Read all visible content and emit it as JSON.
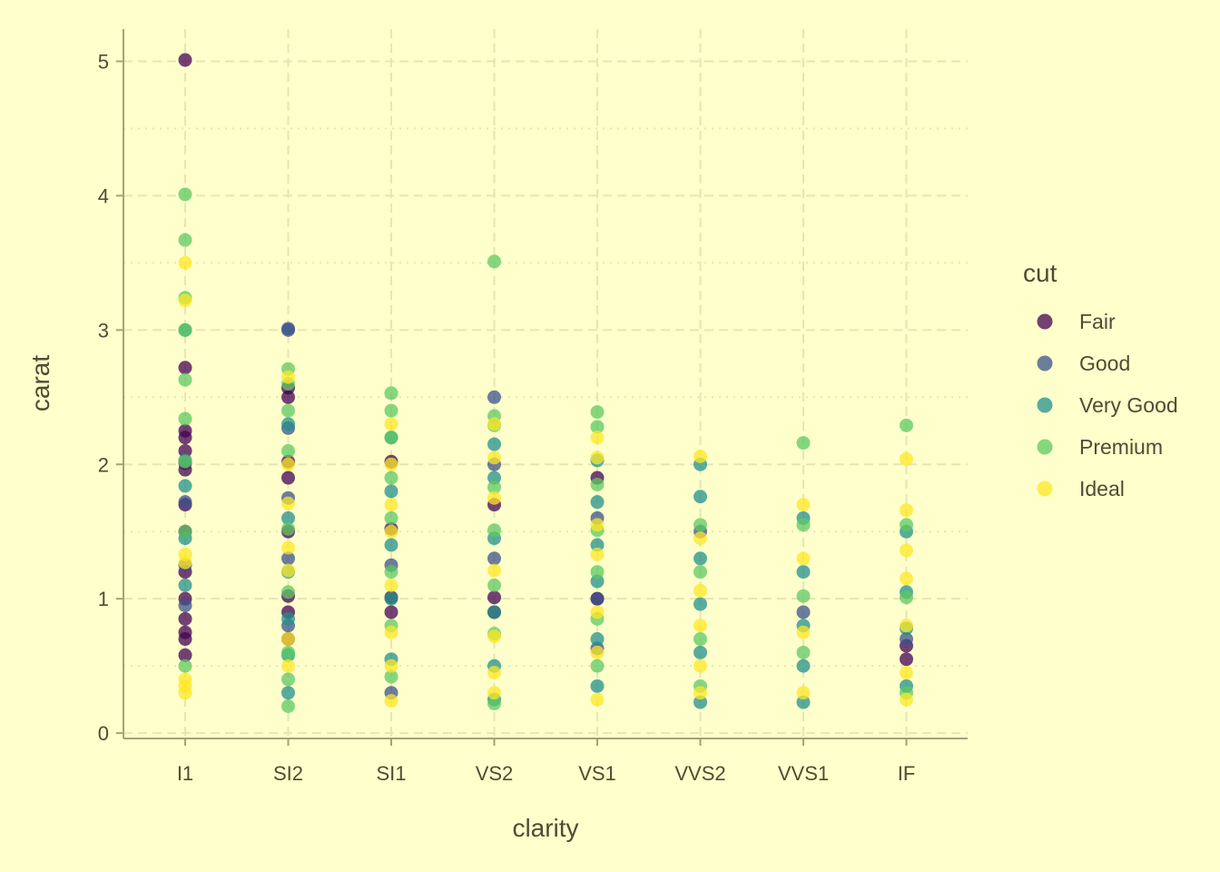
{
  "chart_data": {
    "type": "scatter",
    "xlabel": "clarity",
    "ylabel": "carat",
    "categories": [
      "I1",
      "SI2",
      "SI1",
      "VS2",
      "VS1",
      "VVS2",
      "VVS1",
      "IF"
    ],
    "ylim": [
      -0.04,
      5.24
    ],
    "yticks": [
      0,
      1,
      2,
      3,
      4,
      5
    ],
    "grid": true,
    "legend_position": "right",
    "legend_title": "cut",
    "point_opacity": 0.75,
    "series": [
      {
        "name": "Fair",
        "color": "#440154",
        "points": [
          [
            "I1",
            5.01
          ],
          [
            "I1",
            2.72
          ],
          [
            "I1",
            2.25
          ],
          [
            "I1",
            2.2
          ],
          [
            "I1",
            2.1
          ],
          [
            "I1",
            2.01
          ],
          [
            "I1",
            1.96
          ],
          [
            "I1",
            1.7
          ],
          [
            "I1",
            1.5
          ],
          [
            "I1",
            1.2
          ],
          [
            "I1",
            1.0
          ],
          [
            "I1",
            0.85
          ],
          [
            "I1",
            0.75
          ],
          [
            "I1",
            0.7
          ],
          [
            "I1",
            0.58
          ],
          [
            "SI2",
            2.57
          ],
          [
            "SI2",
            2.5
          ],
          [
            "SI2",
            2.02
          ],
          [
            "SI2",
            1.9
          ],
          [
            "SI2",
            1.5
          ],
          [
            "SI2",
            1.02
          ],
          [
            "SI2",
            0.9
          ],
          [
            "SI2",
            0.7
          ],
          [
            "SI1",
            2.02
          ],
          [
            "SI1",
            1.52
          ],
          [
            "SI1",
            1.01
          ],
          [
            "SI1",
            0.9
          ],
          [
            "VS2",
            1.7
          ],
          [
            "VS2",
            1.01
          ],
          [
            "VS2",
            0.9
          ],
          [
            "VS1",
            1.9
          ],
          [
            "VS1",
            1.0
          ],
          [
            "IF",
            0.65
          ],
          [
            "IF",
            0.55
          ]
        ]
      },
      {
        "name": "Good",
        "color": "#3B528B",
        "points": [
          [
            "I1",
            1.72
          ],
          [
            "I1",
            1.25
          ],
          [
            "I1",
            0.95
          ],
          [
            "SI2",
            3.01
          ],
          [
            "SI2",
            3.0
          ],
          [
            "SI2",
            2.27
          ],
          [
            "SI2",
            1.75
          ],
          [
            "SI2",
            1.3
          ],
          [
            "SI2",
            0.8
          ],
          [
            "SI1",
            1.25
          ],
          [
            "SI1",
            0.3
          ],
          [
            "VS2",
            2.5
          ],
          [
            "VS2",
            2.0
          ],
          [
            "VS2",
            1.3
          ],
          [
            "VS1",
            1.6
          ],
          [
            "VS1",
            1.0
          ],
          [
            "VS1",
            0.63
          ],
          [
            "VVS2",
            1.5
          ],
          [
            "VVS1",
            0.9
          ],
          [
            "IF",
            0.7
          ]
        ]
      },
      {
        "name": "Very Good",
        "color": "#21908C",
        "points": [
          [
            "I1",
            3.0
          ],
          [
            "I1",
            2.03
          ],
          [
            "I1",
            1.84
          ],
          [
            "I1",
            1.45
          ],
          [
            "I1",
            1.1
          ],
          [
            "SI2",
            2.3
          ],
          [
            "SI2",
            1.6
          ],
          [
            "SI2",
            1.2
          ],
          [
            "SI2",
            0.85
          ],
          [
            "SI2",
            0.58
          ],
          [
            "SI2",
            0.3
          ],
          [
            "SI1",
            2.2
          ],
          [
            "SI1",
            1.8
          ],
          [
            "SI1",
            1.4
          ],
          [
            "SI1",
            1.0
          ],
          [
            "SI1",
            0.55
          ],
          [
            "VS2",
            2.15
          ],
          [
            "VS2",
            1.9
          ],
          [
            "VS2",
            1.45
          ],
          [
            "VS2",
            0.9
          ],
          [
            "VS2",
            0.5
          ],
          [
            "VS2",
            0.25
          ],
          [
            "VS1",
            2.03
          ],
          [
            "VS1",
            1.72
          ],
          [
            "VS1",
            1.4
          ],
          [
            "VS1",
            1.13
          ],
          [
            "VS1",
            0.7
          ],
          [
            "VS1",
            0.35
          ],
          [
            "VVS2",
            2.0
          ],
          [
            "VVS2",
            1.76
          ],
          [
            "VVS2",
            1.3
          ],
          [
            "VVS2",
            0.96
          ],
          [
            "VVS2",
            0.6
          ],
          [
            "VVS2",
            0.23
          ],
          [
            "VVS1",
            1.6
          ],
          [
            "VVS1",
            1.2
          ],
          [
            "VVS1",
            0.8
          ],
          [
            "VVS1",
            0.5
          ],
          [
            "VVS1",
            0.23
          ],
          [
            "IF",
            1.5
          ],
          [
            "IF",
            1.05
          ],
          [
            "IF",
            0.78
          ],
          [
            "IF",
            0.35
          ]
        ]
      },
      {
        "name": "Premium",
        "color": "#5DC863",
        "points": [
          [
            "I1",
            4.01
          ],
          [
            "I1",
            3.67
          ],
          [
            "I1",
            3.24
          ],
          [
            "I1",
            3.0
          ],
          [
            "I1",
            2.63
          ],
          [
            "I1",
            2.34
          ],
          [
            "I1",
            2.02
          ],
          [
            "I1",
            1.5
          ],
          [
            "I1",
            0.5
          ],
          [
            "SI2",
            2.71
          ],
          [
            "SI2",
            2.6
          ],
          [
            "SI2",
            2.4
          ],
          [
            "SI2",
            2.1
          ],
          [
            "SI2",
            1.52
          ],
          [
            "SI2",
            1.05
          ],
          [
            "SI2",
            0.6
          ],
          [
            "SI2",
            0.4
          ],
          [
            "SI2",
            0.2
          ],
          [
            "SI1",
            2.53
          ],
          [
            "SI1",
            2.4
          ],
          [
            "SI1",
            2.2
          ],
          [
            "SI1",
            1.9
          ],
          [
            "SI1",
            1.6
          ],
          [
            "SI1",
            1.2
          ],
          [
            "SI1",
            0.8
          ],
          [
            "SI1",
            0.42
          ],
          [
            "VS2",
            3.51
          ],
          [
            "VS2",
            2.36
          ],
          [
            "VS2",
            2.29
          ],
          [
            "VS2",
            1.83
          ],
          [
            "VS2",
            1.51
          ],
          [
            "VS2",
            1.1
          ],
          [
            "VS2",
            0.74
          ],
          [
            "VS2",
            0.22
          ],
          [
            "VS1",
            2.39
          ],
          [
            "VS1",
            2.28
          ],
          [
            "VS1",
            1.85
          ],
          [
            "VS1",
            1.51
          ],
          [
            "VS1",
            1.2
          ],
          [
            "VS1",
            0.85
          ],
          [
            "VS1",
            0.5
          ],
          [
            "VVS2",
            1.55
          ],
          [
            "VVS2",
            1.2
          ],
          [
            "VVS2",
            0.7
          ],
          [
            "VVS2",
            0.35
          ],
          [
            "VVS1",
            2.16
          ],
          [
            "VVS1",
            1.55
          ],
          [
            "VVS1",
            1.02
          ],
          [
            "VVS1",
            0.6
          ],
          [
            "IF",
            2.29
          ],
          [
            "IF",
            1.55
          ],
          [
            "IF",
            1.01
          ],
          [
            "IF",
            0.3
          ]
        ]
      },
      {
        "name": "Ideal",
        "color": "#FDE725",
        "points": [
          [
            "I1",
            3.5
          ],
          [
            "I1",
            3.22
          ],
          [
            "I1",
            1.33
          ],
          [
            "I1",
            1.27
          ],
          [
            "I1",
            0.4
          ],
          [
            "I1",
            0.35
          ],
          [
            "I1",
            0.3
          ],
          [
            "SI2",
            2.65
          ],
          [
            "SI2",
            2.0
          ],
          [
            "SI2",
            1.71
          ],
          [
            "SI2",
            1.38
          ],
          [
            "SI2",
            1.21
          ],
          [
            "SI2",
            0.7
          ],
          [
            "SI2",
            0.5
          ],
          [
            "SI1",
            2.3
          ],
          [
            "SI1",
            2.0
          ],
          [
            "SI1",
            1.7
          ],
          [
            "SI1",
            1.5
          ],
          [
            "SI1",
            1.1
          ],
          [
            "SI1",
            0.75
          ],
          [
            "SI1",
            0.5
          ],
          [
            "SI1",
            0.24
          ],
          [
            "VS2",
            2.3
          ],
          [
            "VS2",
            2.05
          ],
          [
            "VS2",
            1.75
          ],
          [
            "VS2",
            1.21
          ],
          [
            "VS2",
            0.72
          ],
          [
            "VS2",
            0.45
          ],
          [
            "VS2",
            0.3
          ],
          [
            "VS1",
            2.2
          ],
          [
            "VS1",
            2.05
          ],
          [
            "VS1",
            1.55
          ],
          [
            "VS1",
            1.33
          ],
          [
            "VS1",
            0.9
          ],
          [
            "VS1",
            0.6
          ],
          [
            "VS1",
            0.25
          ],
          [
            "VVS2",
            2.06
          ],
          [
            "VVS2",
            1.45
          ],
          [
            "VVS2",
            1.06
          ],
          [
            "VVS2",
            0.8
          ],
          [
            "VVS2",
            0.5
          ],
          [
            "VVS2",
            0.3
          ],
          [
            "VVS1",
            1.7
          ],
          [
            "VVS1",
            1.3
          ],
          [
            "VVS1",
            0.75
          ],
          [
            "VVS1",
            0.3
          ],
          [
            "IF",
            2.04
          ],
          [
            "IF",
            1.66
          ],
          [
            "IF",
            1.36
          ],
          [
            "IF",
            1.15
          ],
          [
            "IF",
            0.8
          ],
          [
            "IF",
            0.45
          ],
          [
            "IF",
            0.25
          ]
        ]
      }
    ]
  }
}
